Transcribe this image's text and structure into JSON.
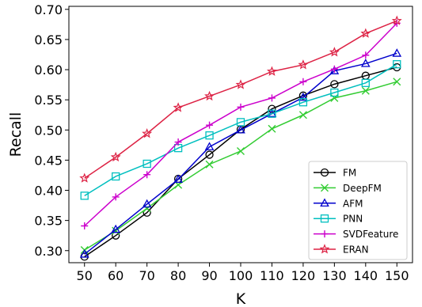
{
  "chart_data": {
    "type": "line",
    "title": "",
    "xlabel": "K",
    "ylabel": "Recall",
    "x": [
      50,
      60,
      70,
      80,
      90,
      100,
      110,
      120,
      130,
      140,
      150
    ],
    "xlim": [
      45,
      155
    ],
    "ylim": [
      0.28,
      0.705
    ],
    "yticks": [
      "0.30",
      "0.35",
      "0.40",
      "0.45",
      "0.50",
      "0.55",
      "0.60",
      "0.65",
      "0.70"
    ],
    "xticks": [
      "50",
      "60",
      "70",
      "80",
      "90",
      "100",
      "110",
      "120",
      "130",
      "140",
      "150"
    ],
    "grid": false,
    "legend_position": "lower-right",
    "series": [
      {
        "name": "FM",
        "color": "#000000",
        "marker": "circle",
        "values": [
          0.29,
          0.325,
          0.363,
          0.419,
          0.459,
          0.501,
          0.535,
          0.557,
          0.576,
          0.59,
          0.604
        ]
      },
      {
        "name": "DeepFM",
        "color": "#33cc33",
        "marker": "x",
        "values": [
          0.301,
          0.333,
          0.37,
          0.409,
          0.443,
          0.465,
          0.502,
          0.525,
          0.553,
          0.565,
          0.58
        ]
      },
      {
        "name": "AFM",
        "color": "#0000cc",
        "marker": "triangle",
        "values": [
          0.294,
          0.335,
          0.377,
          0.418,
          0.472,
          0.5,
          0.527,
          0.554,
          0.598,
          0.61,
          0.627
        ]
      },
      {
        "name": "PNN",
        "color": "#00bfbf",
        "marker": "square",
        "values": [
          0.391,
          0.423,
          0.444,
          0.47,
          0.491,
          0.513,
          0.527,
          0.546,
          0.562,
          0.578,
          0.609
        ]
      },
      {
        "name": "SVDFeature",
        "color": "#cc00cc",
        "marker": "plus",
        "values": [
          0.341,
          0.389,
          0.426,
          0.48,
          0.508,
          0.538,
          0.553,
          0.58,
          0.601,
          0.624,
          0.677
        ]
      },
      {
        "name": "ERAN",
        "color": "#dd2244",
        "marker": "star",
        "values": [
          0.42,
          0.455,
          0.494,
          0.537,
          0.556,
          0.575,
          0.597,
          0.608,
          0.629,
          0.66,
          0.681
        ]
      }
    ]
  }
}
